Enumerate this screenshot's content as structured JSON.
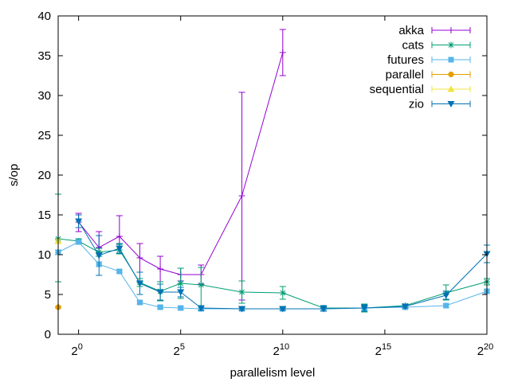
{
  "chart_data": {
    "type": "line",
    "xlabel": "parallelism level",
    "ylabel": "s/op",
    "xscale": "log2",
    "xlim_exponent": [
      -1,
      20
    ],
    "ylim": [
      0,
      40
    ],
    "x_tick_exponents": [
      0,
      5,
      10,
      15,
      20
    ],
    "x_tick_base": "2",
    "y_ticks": [
      0,
      5,
      10,
      15,
      20,
      25,
      30,
      35,
      40
    ],
    "grid": false,
    "legend_position": "top-right",
    "series": [
      {
        "name": "akka",
        "color": "#9400d3",
        "marker": "plus",
        "points": [
          {
            "x_exp": 0,
            "y": 14.1,
            "lo": 12.9,
            "hi": 15.2
          },
          {
            "x_exp": 1,
            "y": 10.9,
            "lo": 9.8,
            "hi": 12.9
          },
          {
            "x_exp": 2,
            "y": 12.3,
            "lo": 10.2,
            "hi": 14.9
          },
          {
            "x_exp": 3,
            "y": 9.6,
            "lo": 7.8,
            "hi": 11.4
          },
          {
            "x_exp": 4,
            "y": 8.2,
            "lo": 6.6,
            "hi": 9.8
          },
          {
            "x_exp": 5,
            "y": 7.5,
            "lo": 6.7,
            "hi": 8.3
          },
          {
            "x_exp": 6,
            "y": 7.5,
            "lo": 6.3,
            "hi": 8.7
          },
          {
            "x_exp": 8,
            "y": 17.4,
            "lo": 4.3,
            "hi": 30.4
          },
          {
            "x_exp": 10,
            "y": 35.4,
            "lo": 32.5,
            "hi": 38.3
          }
        ]
      },
      {
        "name": "cats",
        "color": "#009e73",
        "marker": "star",
        "points": [
          {
            "x_exp": -1,
            "y": 12.0,
            "lo": 6.6,
            "hi": 17.6
          },
          {
            "x_exp": 0,
            "y": 11.7,
            "lo": 11.4,
            "hi": 12.0
          },
          {
            "x_exp": 1,
            "y": 10.3,
            "lo": 9.8,
            "hi": 10.8
          },
          {
            "x_exp": 2,
            "y": 10.6,
            "lo": 10.1,
            "hi": 11.3
          },
          {
            "x_exp": 3,
            "y": 6.5,
            "lo": 6.0,
            "hi": 7.0
          },
          {
            "x_exp": 4,
            "y": 5.4,
            "lo": 4.2,
            "hi": 6.6
          },
          {
            "x_exp": 5,
            "y": 6.4,
            "lo": 4.5,
            "hi": 8.3
          },
          {
            "x_exp": 6,
            "y": 6.2,
            "lo": 3.6,
            "hi": 8.4
          },
          {
            "x_exp": 8,
            "y": 5.3,
            "lo": 3.9,
            "hi": 6.7
          },
          {
            "x_exp": 10,
            "y": 5.2,
            "lo": 4.4,
            "hi": 6.0
          },
          {
            "x_exp": 12,
            "y": 3.3,
            "lo": 3.0,
            "hi": 3.6
          },
          {
            "x_exp": 14,
            "y": 3.3,
            "lo": 2.8,
            "hi": 3.8
          },
          {
            "x_exp": 16,
            "y": 3.6,
            "lo": 3.4,
            "hi": 3.8
          },
          {
            "x_exp": 18,
            "y": 5.2,
            "lo": 4.3,
            "hi": 6.2
          },
          {
            "x_exp": 20,
            "y": 6.6,
            "lo": 6.2,
            "hi": 7.0
          }
        ]
      },
      {
        "name": "futures",
        "color": "#56b4e9",
        "marker": "square",
        "points": [
          {
            "x_exp": -1,
            "y": 10.3,
            "lo": 10.0,
            "hi": 10.6
          },
          {
            "x_exp": 0,
            "y": 11.6,
            "lo": 11.3,
            "hi": 11.9
          },
          {
            "x_exp": 1,
            "y": 8.8,
            "lo": 8.5,
            "hi": 9.1
          },
          {
            "x_exp": 2,
            "y": 7.9,
            "lo": 7.7,
            "hi": 8.1
          },
          {
            "x_exp": 3,
            "y": 4.0,
            "lo": 3.8,
            "hi": 4.2
          },
          {
            "x_exp": 4,
            "y": 3.4,
            "lo": 3.2,
            "hi": 3.6
          },
          {
            "x_exp": 5,
            "y": 3.3,
            "lo": 3.1,
            "hi": 3.5
          },
          {
            "x_exp": 6,
            "y": 3.2,
            "lo": 3.0,
            "hi": 3.4
          },
          {
            "x_exp": 8,
            "y": 3.2,
            "lo": 3.0,
            "hi": 3.4
          },
          {
            "x_exp": 10,
            "y": 3.2,
            "lo": 3.0,
            "hi": 3.4
          },
          {
            "x_exp": 12,
            "y": 3.2,
            "lo": 3.0,
            "hi": 3.4
          },
          {
            "x_exp": 14,
            "y": 3.3,
            "lo": 3.1,
            "hi": 3.5
          },
          {
            "x_exp": 16,
            "y": 3.4,
            "lo": 3.2,
            "hi": 3.6
          },
          {
            "x_exp": 18,
            "y": 3.6,
            "lo": 3.4,
            "hi": 3.8
          },
          {
            "x_exp": 20,
            "y": 5.4,
            "lo": 5.2,
            "hi": 5.6
          }
        ]
      },
      {
        "name": "parallel",
        "color": "#e69f00",
        "marker": "circle",
        "points": [
          {
            "x_exp": -1,
            "y": 3.4,
            "lo": 3.3,
            "hi": 3.5
          }
        ]
      },
      {
        "name": "sequential",
        "color": "#f0e442",
        "marker": "triangle",
        "points": [
          {
            "x_exp": -1,
            "y": 11.7,
            "lo": 11.5,
            "hi": 11.9
          }
        ]
      },
      {
        "name": "zio",
        "color": "#0072b2",
        "marker": "triangle-down",
        "points": [
          {
            "x_exp": 0,
            "y": 14.2,
            "lo": 13.4,
            "hi": 15.0
          },
          {
            "x_exp": 1,
            "y": 9.9,
            "lo": 7.4,
            "hi": 12.4
          },
          {
            "x_exp": 2,
            "y": 10.8,
            "lo": 10.2,
            "hi": 11.4
          },
          {
            "x_exp": 3,
            "y": 6.4,
            "lo": 5.0,
            "hi": 7.8
          },
          {
            "x_exp": 4,
            "y": 5.3,
            "lo": 4.3,
            "hi": 6.3
          },
          {
            "x_exp": 5,
            "y": 5.3,
            "lo": 4.7,
            "hi": 5.9
          },
          {
            "x_exp": 6,
            "y": 3.3,
            "lo": 3.0,
            "hi": 3.6
          },
          {
            "x_exp": 8,
            "y": 3.2,
            "lo": 3.0,
            "hi": 3.4
          },
          {
            "x_exp": 10,
            "y": 3.2,
            "lo": 3.0,
            "hi": 3.4
          },
          {
            "x_exp": 12,
            "y": 3.2,
            "lo": 2.9,
            "hi": 3.6
          },
          {
            "x_exp": 14,
            "y": 3.3,
            "lo": 2.9,
            "hi": 3.7
          },
          {
            "x_exp": 16,
            "y": 3.5,
            "lo": 3.3,
            "hi": 3.7
          },
          {
            "x_exp": 18,
            "y": 4.9,
            "lo": 4.4,
            "hi": 5.4
          },
          {
            "x_exp": 20,
            "y": 10.1,
            "lo": 9.0,
            "hi": 11.2
          }
        ]
      }
    ]
  }
}
